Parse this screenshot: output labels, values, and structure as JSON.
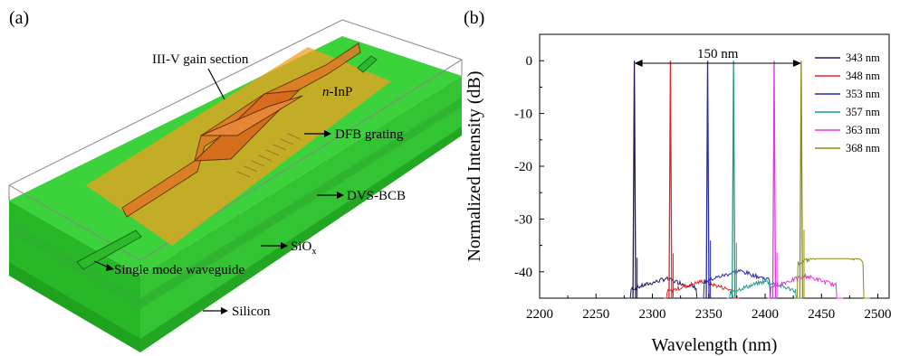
{
  "panel_a": {
    "tag": "(a)",
    "labels": {
      "gain": "III-V gain section",
      "ninp_n": "n",
      "ninp_rest": "-InP",
      "dfb": "DFB grating",
      "dvs": "DVS-BCB",
      "siox": "SiO",
      "siox_sub": "x",
      "wg": "Single mode waveguide",
      "si": "Silicon"
    },
    "colors": {
      "substrate": "#3cd23c",
      "slab": "#f0a020",
      "gain": "#e07828"
    }
  },
  "panel_b": {
    "tag": "(b)",
    "span_label": "150 nm"
  },
  "chart_data": {
    "type": "line",
    "xlabel": "Wavelength (nm)",
    "ylabel": "Normalized Intensity (dB)",
    "xlim": [
      2200,
      2510
    ],
    "ylim": [
      -45,
      5
    ],
    "xticks": [
      2200,
      2250,
      2300,
      2350,
      2400,
      2450,
      2500
    ],
    "yticks": [
      0,
      -10,
      -20,
      -30,
      -40
    ],
    "legend_position": "top-right",
    "series": [
      {
        "name": "343 nm",
        "color": "#1a1a5e",
        "peak_x": 2284,
        "peak_y": 0,
        "floor_y": -43.5
      },
      {
        "name": "348 nm",
        "color": "#e8232a",
        "peak_x": 2316,
        "peak_y": 0,
        "floor_y": -44
      },
      {
        "name": "353 nm",
        "color": "#2a2aa8",
        "peak_x": 2349,
        "peak_y": 0,
        "floor_y": -42
      },
      {
        "name": "357 nm",
        "color": "#1f9a8a",
        "peak_x": 2372,
        "peak_y": 0,
        "floor_y": -44
      },
      {
        "name": "363 nm",
        "color": "#e236e2",
        "peak_x": 2408,
        "peak_y": 0,
        "floor_y": -43
      },
      {
        "name": "368 nm",
        "color": "#8c8c14",
        "peak_x": 2432,
        "peak_y": 0,
        "floor_y": -38.5
      }
    ]
  }
}
